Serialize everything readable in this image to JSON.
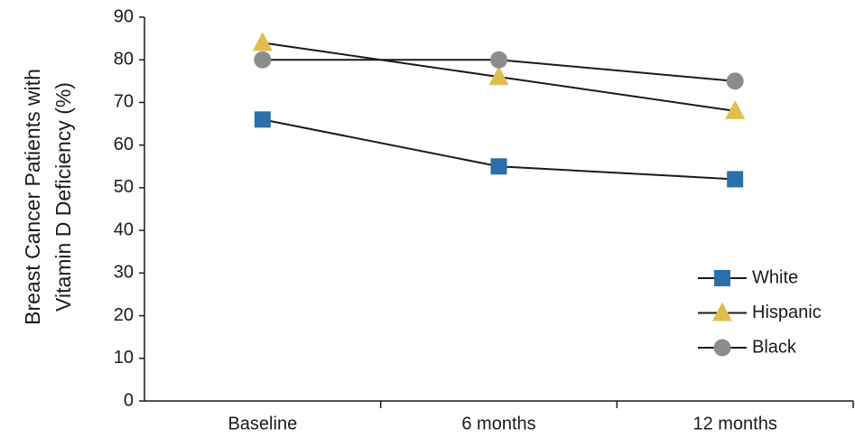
{
  "chart_data": {
    "type": "line",
    "ylabel": [
      "Breast Cancer Patients with",
      "Vitamin D Deficiency (%)"
    ],
    "categories": [
      "Baseline",
      "6 months",
      "12 months"
    ],
    "series": [
      {
        "name": "White",
        "color": "#2a6eaa",
        "marker": "square",
        "values": [
          66,
          55,
          52
        ]
      },
      {
        "name": "Hispanic",
        "color": "#e0be4e",
        "marker": "triangle",
        "values": [
          84,
          76,
          68
        ]
      },
      {
        "name": "Black",
        "color": "#8c8c8c",
        "marker": "circle",
        "values": [
          80,
          80,
          75
        ]
      }
    ],
    "line_color": "#1a1a1a",
    "ylim": [
      0,
      90
    ],
    "yticks": [
      0,
      10,
      20,
      30,
      40,
      50,
      60,
      70,
      80,
      90
    ],
    "grid": false,
    "legend": "lower right"
  }
}
